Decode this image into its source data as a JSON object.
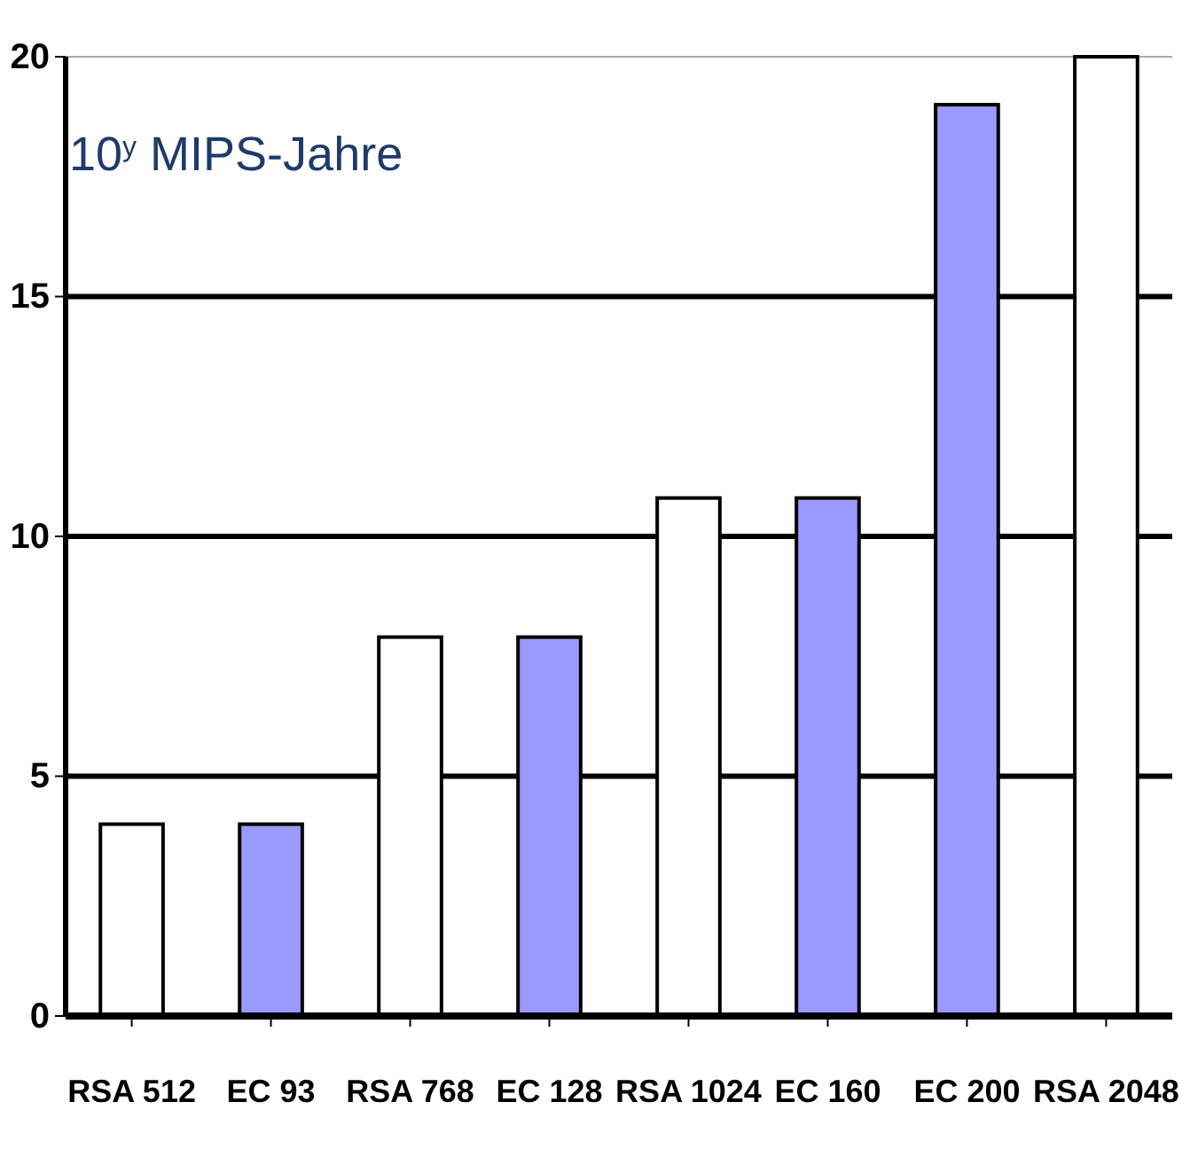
{
  "chart_data": {
    "type": "bar",
    "ylabel": "10$^{y}$ MIPS-Jahre",
    "categories": [
      "RSA 512",
      "EC 93",
      "RSA 768",
      "EC 128",
      "RSA 1024",
      "EC 160",
      "EC 200",
      "RSA 2048"
    ],
    "values": [
      4,
      4,
      7.9,
      7.9,
      10.8,
      10.8,
      19,
      20
    ],
    "colors": [
      "#ffffff",
      "#9999ff",
      "#ffffff",
      "#9999ff",
      "#ffffff",
      "#9999ff",
      "#9999ff",
      "#ffffff"
    ],
    "ylim": [
      0,
      20
    ],
    "yticks": [
      0,
      5,
      10,
      15,
      20
    ],
    "grid": "y"
  }
}
